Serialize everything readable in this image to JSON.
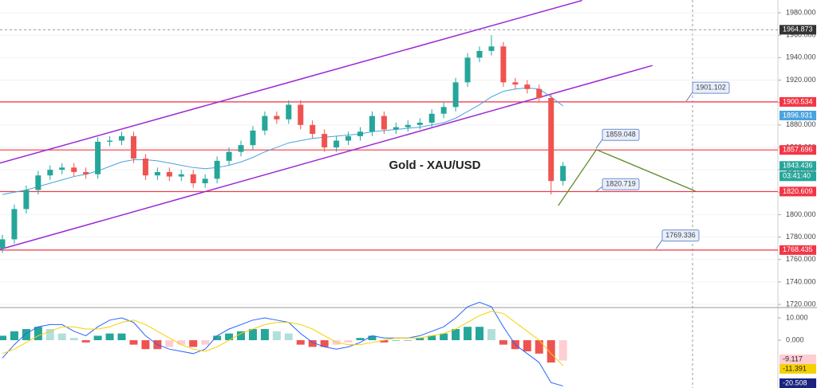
{
  "chart_data": [
    {
      "type": "candlestick",
      "title": "Gold - XAU/USD",
      "open": [
        1770,
        1778,
        1805,
        1822,
        1835,
        1840,
        1842,
        1838,
        1836,
        1865,
        1866,
        1870,
        1850,
        1835,
        1838,
        1834,
        1836,
        1828,
        1832,
        1848,
        1856,
        1862,
        1875,
        1888,
        1885,
        1898,
        1880,
        1872,
        1860,
        1866,
        1870,
        1874,
        1888,
        1876,
        1878,
        1880,
        1882,
        1890,
        1896,
        1918,
        1940,
        1946,
        1950,
        1918,
        1916,
        1912,
        1904,
        1830
      ],
      "high": [
        1782,
        1809,
        1826,
        1839,
        1844,
        1846,
        1846,
        1842,
        1869,
        1870,
        1874,
        1874,
        1854,
        1842,
        1842,
        1840,
        1840,
        1836,
        1852,
        1860,
        1866,
        1879,
        1892,
        1892,
        1902,
        1902,
        1884,
        1876,
        1870,
        1874,
        1878,
        1892,
        1892,
        1882,
        1884,
        1886,
        1894,
        1900,
        1922,
        1944,
        1950,
        1960,
        1954,
        1922,
        1920,
        1916,
        1908,
        1847
      ],
      "low": [
        1766,
        1774,
        1801,
        1818,
        1831,
        1836,
        1834,
        1832,
        1832,
        1861,
        1862,
        1846,
        1831,
        1831,
        1830,
        1830,
        1824,
        1824,
        1828,
        1844,
        1852,
        1858,
        1871,
        1881,
        1881,
        1876,
        1868,
        1856,
        1856,
        1862,
        1866,
        1870,
        1872,
        1872,
        1874,
        1876,
        1878,
        1886,
        1892,
        1914,
        1936,
        1942,
        1914,
        1912,
        1908,
        1900,
        1818,
        1826
      ],
      "close": [
        1778,
        1805,
        1822,
        1835,
        1840,
        1842,
        1838,
        1836,
        1865,
        1866,
        1870,
        1850,
        1835,
        1838,
        1834,
        1836,
        1828,
        1832,
        1848,
        1856,
        1862,
        1875,
        1888,
        1885,
        1898,
        1880,
        1872,
        1860,
        1866,
        1870,
        1874,
        1888,
        1876,
        1878,
        1880,
        1882,
        1890,
        1896,
        1918,
        1940,
        1946,
        1950,
        1918,
        1916,
        1912,
        1904,
        1830,
        1843.436
      ],
      "up_color": "#26a69a",
      "down_color": "#ef5350",
      "ma": {
        "color": "#4aa3df",
        "values": [
          1818,
          1820,
          1822,
          1825,
          1828,
          1831,
          1834,
          1836,
          1839,
          1843,
          1847,
          1849,
          1849,
          1848,
          1846,
          1844,
          1842,
          1841,
          1842,
          1844,
          1847,
          1851,
          1856,
          1860,
          1864,
          1866,
          1868,
          1869,
          1870,
          1871,
          1872,
          1874,
          1875,
          1876,
          1877,
          1878,
          1880,
          1882,
          1886,
          1892,
          1898,
          1905,
          1910,
          1912,
          1913,
          1912,
          1905,
          1896.931
        ]
      },
      "ylim": [
        1717.9,
        1991.4
      ],
      "yticks": [
        {
          "value": 1720,
          "label": "1720.000"
        },
        {
          "value": 1740,
          "label": "1740.000"
        },
        {
          "value": 1760,
          "label": "1760.000"
        },
        {
          "value": 1780,
          "label": "1780.000"
        },
        {
          "value": 1800,
          "label": "1800.000"
        },
        {
          "value": 1820,
          "label": "1820.000"
        },
        {
          "value": 1840,
          "label": "1840.000"
        },
        {
          "value": 1860,
          "label": "1860.000"
        },
        {
          "value": 1880,
          "label": "1880.000"
        },
        {
          "value": 1900,
          "label": "1900.000"
        },
        {
          "value": 1920,
          "label": "1920.000"
        },
        {
          "value": 1940,
          "label": "1940.000"
        },
        {
          "value": 1960,
          "label": "1960.000"
        },
        {
          "value": 1980,
          "label": "1980.000"
        }
      ],
      "levels": [
        1900.534,
        1857.696,
        1820.609,
        1768.435
      ],
      "level_color": "#f23645",
      "callouts": [
        1901.102,
        1859.048,
        1820.719,
        1769.336
      ],
      "crosshair": 1964.873,
      "countdown": "03:41:40",
      "channel": [
        {
          "x": [
            -0.2,
            48.6
          ],
          "y": [
            1846,
            1991
          ]
        },
        {
          "x": [
            -0.2,
            54.5
          ],
          "y": [
            1769,
            1933
          ]
        }
      ],
      "channel_color": "#9c27d6",
      "projection": {
        "color": "#5b8c2a",
        "x": [
          46.6,
          49.8,
          58.1
        ],
        "y": [
          1808,
          1858,
          1821
        ]
      }
    },
    {
      "type": "macd",
      "histogram": [
        2,
        4,
        5,
        6,
        5,
        3,
        1,
        -1,
        2,
        3,
        3,
        -2,
        -4,
        -4,
        -3,
        -2,
        -3,
        -2,
        2,
        3,
        4,
        5,
        5,
        4,
        3,
        -2,
        -3,
        -3,
        -2,
        -1,
        1,
        2,
        -1,
        0,
        0,
        1,
        2,
        3,
        5,
        6,
        6,
        5,
        -2,
        -4,
        -5,
        -6,
        -10,
        -9.117
      ],
      "macd": {
        "color": "#2962ff",
        "values": [
          -8,
          -2,
          3,
          6,
          7,
          7,
          4,
          2,
          6,
          9,
          10,
          8,
          2,
          -2,
          -4,
          -5,
          -6,
          -4,
          2,
          5,
          7,
          9,
          10,
          9,
          8,
          3,
          -1,
          -3,
          -4,
          -3,
          -1,
          2,
          1,
          1,
          1,
          2,
          4,
          6,
          10,
          15,
          17,
          15,
          6,
          -2,
          -6,
          -10,
          -19,
          -20.508
        ]
      },
      "signal": {
        "color": "#f5d100",
        "values": [
          -6,
          -4,
          -1,
          2,
          4,
          6,
          6,
          5,
          5,
          6,
          8,
          9,
          7,
          4,
          1,
          -2,
          -4,
          -5,
          -3,
          0,
          3,
          5,
          7,
          8,
          8,
          7,
          5,
          2,
          -1,
          -2,
          -2,
          -1,
          0,
          1,
          1,
          1,
          2,
          3,
          5,
          8,
          11,
          13,
          12,
          8,
          4,
          0,
          -6,
          -11.391
        ]
      },
      "ylim": [
        -21.43,
        14.29
      ],
      "yticks": [
        {
          "value": 10,
          "label": "10.000"
        },
        {
          "value": 0,
          "label": "0.000"
        }
      ]
    }
  ]
}
